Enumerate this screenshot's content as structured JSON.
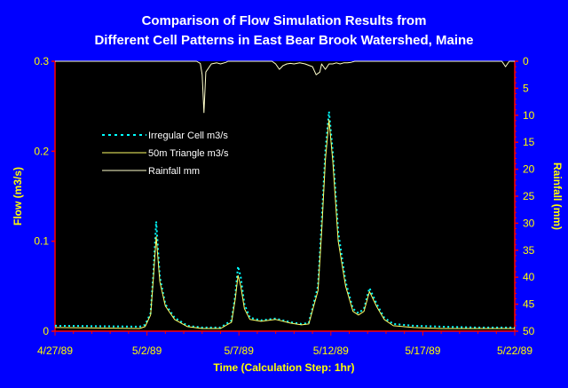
{
  "chart_data": {
    "type": "line",
    "title_lines": [
      "Comparison of Flow Simulation Results from",
      "Different Cell Patterns in East Bear Brook Watershed, Maine"
    ],
    "xlabel": "Time (Calculation Step: 1hr)",
    "ylabel": "Flow (m3/s)",
    "y2label": "Rainfall (mm)",
    "x_tick_labels": [
      "4/27/89",
      "5/2/89",
      "5/7/89",
      "5/12/89",
      "5/17/89",
      "5/22/89"
    ],
    "x_range_days": [
      0,
      25
    ],
    "ylim": [
      0,
      0.3
    ],
    "y_ticks": [
      0,
      0.1,
      0.2,
      0.3
    ],
    "y_tick_labels": [
      "0",
      "0.1",
      "0.2",
      "0.3"
    ],
    "y2lim": [
      0,
      50
    ],
    "y2_inverted": true,
    "y2_ticks": [
      0,
      5,
      10,
      15,
      20,
      25,
      30,
      35,
      40,
      45,
      50
    ],
    "grid": false,
    "legend_position": "upper-left",
    "colors": {
      "background": "#0000FF",
      "plot_area": "#000000",
      "axis": "#FF0000",
      "irregular": "#00FFFF",
      "triangle": "#FFFF66",
      "rainfall": "#FFFFCC",
      "title": "#FFFFFF",
      "labels": "#FFFF00"
    },
    "series": [
      {
        "name": "Irregular Cell m3/s",
        "style": "dotted",
        "axis": "left",
        "x": [
          0,
          4.6,
          4.9,
          5.2,
          5.35,
          5.5,
          5.7,
          6.0,
          6.5,
          7.2,
          8.0,
          9.0,
          9.6,
          9.8,
          9.95,
          10.1,
          10.3,
          10.6,
          11.2,
          12.0,
          12.8,
          13.4,
          13.8,
          14.3,
          14.5,
          14.7,
          14.9,
          15.1,
          15.4,
          15.8,
          16.2,
          16.5,
          16.8,
          17.1,
          17.5,
          17.9,
          18.4,
          19.5,
          21.0,
          23.0,
          25.0
        ],
        "values": [
          0.006,
          0.005,
          0.007,
          0.02,
          0.065,
          0.122,
          0.06,
          0.03,
          0.015,
          0.006,
          0.004,
          0.004,
          0.012,
          0.04,
          0.072,
          0.06,
          0.03,
          0.015,
          0.012,
          0.014,
          0.01,
          0.008,
          0.009,
          0.05,
          0.12,
          0.2,
          0.244,
          0.2,
          0.11,
          0.055,
          0.025,
          0.02,
          0.025,
          0.048,
          0.03,
          0.015,
          0.008,
          0.006,
          0.005,
          0.004,
          0.004
        ]
      },
      {
        "name": "50m Triangle m3/s",
        "style": "solid",
        "axis": "left",
        "x": [
          0,
          4.6,
          4.9,
          5.2,
          5.35,
          5.5,
          5.7,
          6.0,
          6.5,
          7.2,
          8.0,
          9.0,
          9.6,
          9.8,
          9.95,
          10.1,
          10.3,
          10.6,
          11.2,
          12.0,
          12.8,
          13.4,
          13.8,
          14.3,
          14.5,
          14.7,
          14.9,
          15.1,
          15.4,
          15.8,
          16.2,
          16.5,
          16.8,
          17.1,
          17.5,
          17.9,
          18.4,
          19.5,
          21.0,
          23.0,
          25.0
        ],
        "values": [
          0.004,
          0.003,
          0.005,
          0.018,
          0.06,
          0.105,
          0.055,
          0.028,
          0.013,
          0.005,
          0.003,
          0.003,
          0.01,
          0.036,
          0.062,
          0.05,
          0.025,
          0.013,
          0.011,
          0.013,
          0.009,
          0.007,
          0.008,
          0.045,
          0.11,
          0.19,
          0.235,
          0.19,
          0.1,
          0.05,
          0.022,
          0.018,
          0.022,
          0.044,
          0.027,
          0.013,
          0.006,
          0.004,
          0.003,
          0.003,
          0.003
        ]
      },
      {
        "name": "Rainfall mm",
        "style": "solid",
        "axis": "right",
        "x": [
          0,
          7.3,
          7.5,
          7.7,
          7.9,
          8.0,
          8.1,
          8.2,
          8.5,
          8.8,
          9.0,
          9.3,
          9.4,
          9.6,
          11.8,
          12.0,
          12.2,
          12.4,
          12.6,
          12.8,
          13.0,
          13.3,
          13.6,
          14.0,
          14.2,
          14.4,
          14.5,
          14.7,
          14.9,
          15.1,
          15.3,
          15.5,
          15.7,
          15.9,
          16.1,
          16.3,
          16.5,
          17.0,
          17.2,
          17.4,
          17.6,
          18.0,
          24.3,
          24.5,
          24.7,
          25.0
        ],
        "values": [
          0,
          0,
          0,
          0,
          0.4,
          2.5,
          9.5,
          2.0,
          0.5,
          0.3,
          0.5,
          0.2,
          0,
          0,
          0,
          0.5,
          1.5,
          0.8,
          0.5,
          0.4,
          0.5,
          0.3,
          0.5,
          1.0,
          2.5,
          2.0,
          0.5,
          1.5,
          0.5,
          0.5,
          0.3,
          0.5,
          0.3,
          0.3,
          0.2,
          0,
          0,
          0,
          0,
          0,
          0,
          0,
          0,
          1.0,
          0,
          0
        ]
      }
    ]
  }
}
